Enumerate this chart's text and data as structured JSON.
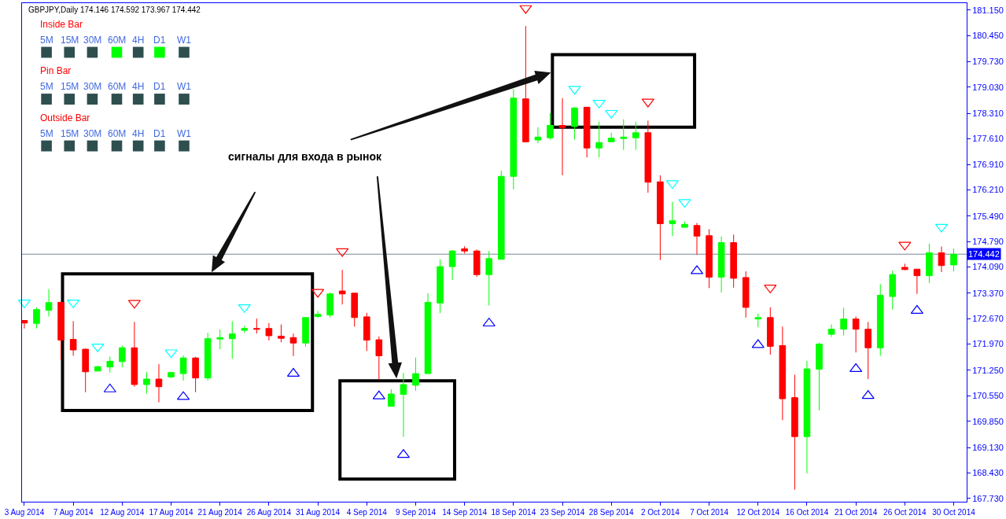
{
  "chart_data": {
    "type": "candlestick",
    "title": "GBPJPY,Daily 174.146 174.592 173.967 174.442",
    "categories": [
      "3 Aug 2014",
      null,
      null,
      null,
      "7 Aug 2014",
      null,
      null,
      null,
      "12 Aug 2014",
      null,
      null,
      null,
      "17 Aug 2014",
      null,
      null,
      null,
      "21 Aug 2014",
      null,
      null,
      null,
      "26 Aug 2014",
      null,
      null,
      null,
      "31 Aug 2014",
      null,
      null,
      null,
      "4 Sep 2014",
      null,
      null,
      null,
      "9 Sep 2014",
      null,
      null,
      null,
      "14 Sep 2014",
      null,
      null,
      null,
      "18 Sep 2014",
      null,
      null,
      null,
      "23 Sep 2014",
      null,
      null,
      null,
      "28 Sep 2014",
      null,
      null,
      null,
      "2 Oct 2014",
      null,
      null,
      null,
      "7 Oct 2014",
      null,
      null,
      null,
      "12 Oct 2014",
      null,
      null,
      null,
      "16 Oct 2014",
      null,
      null,
      null,
      "21 Oct 2014",
      null,
      null,
      null,
      "26 Oct 2014",
      null,
      null,
      null,
      "30 Oct 2014"
    ],
    "ohlc": [
      [
        172.62,
        172.62,
        172.4,
        172.55
      ],
      [
        172.54,
        172.98,
        172.4,
        172.92
      ],
      [
        172.9,
        173.48,
        172.73,
        173.11
      ],
      [
        173.12,
        173.12,
        171.53,
        172.08
      ],
      [
        172.1,
        172.6,
        171.65,
        171.81
      ],
      [
        171.83,
        171.85,
        170.65,
        171.21
      ],
      [
        171.23,
        171.38,
        171.23,
        171.35
      ],
      [
        171.34,
        171.63,
        171.19,
        171.5
      ],
      [
        171.49,
        171.93,
        171.33,
        171.87
      ],
      [
        171.87,
        172.58,
        170.8,
        170.86
      ],
      [
        170.86,
        171.2,
        170.61,
        171.01
      ],
      [
        171.01,
        171.42,
        170.37,
        170.8
      ],
      [
        171.07,
        171.21,
        171.04,
        171.19
      ],
      [
        171.16,
        171.66,
        170.97,
        171.59
      ],
      [
        171.59,
        171.62,
        170.65,
        171.04
      ],
      [
        171.04,
        172.28,
        170.97,
        172.12
      ],
      [
        172.11,
        172.37,
        171.83,
        172.15
      ],
      [
        172.12,
        172.6,
        171.57,
        172.25
      ],
      [
        172.35,
        172.47,
        172.28,
        172.4
      ],
      [
        172.4,
        172.67,
        172.26,
        172.38
      ],
      [
        172.4,
        172.55,
        172.07,
        172.2
      ],
      [
        172.19,
        172.51,
        172.02,
        172.13
      ],
      [
        172.15,
        172.26,
        171.64,
        172.0
      ],
      [
        172.0,
        172.7,
        171.9,
        172.7
      ],
      [
        172.73,
        172.88,
        172.69,
        172.79
      ],
      [
        172.77,
        173.39,
        172.7,
        173.35
      ],
      [
        173.43,
        174.01,
        173.06,
        173.35
      ],
      [
        173.37,
        173.37,
        172.45,
        172.7
      ],
      [
        172.72,
        172.83,
        171.78,
        172.08
      ],
      [
        172.09,
        172.18,
        171.0,
        171.65
      ],
      [
        170.26,
        170.73,
        170.26,
        170.6
      ],
      [
        170.59,
        171.18,
        169.42,
        170.86
      ],
      [
        170.84,
        171.6,
        170.69,
        171.16
      ],
      [
        171.16,
        173.37,
        171.16,
        173.12
      ],
      [
        173.1,
        174.3,
        172.82,
        174.1
      ],
      [
        174.1,
        174.55,
        173.73,
        174.53
      ],
      [
        174.59,
        174.66,
        174.46,
        174.53
      ],
      [
        174.53,
        174.57,
        173.82,
        173.88
      ],
      [
        173.88,
        174.53,
        173.03,
        174.32
      ],
      [
        174.3,
        176.74,
        174.3,
        176.58
      ],
      [
        176.58,
        178.98,
        176.22,
        178.73
      ],
      [
        178.71,
        180.71,
        177.51,
        177.53
      ],
      [
        177.58,
        177.93,
        177.49,
        177.66
      ],
      [
        177.64,
        178.32,
        177.59,
        177.98
      ],
      [
        177.98,
        178.73,
        176.61,
        177.92
      ],
      [
        177.95,
        178.48,
        177.59,
        178.46
      ],
      [
        178.48,
        178.48,
        177.1,
        177.36
      ],
      [
        177.36,
        178.08,
        177.1,
        177.51
      ],
      [
        177.53,
        177.78,
        177.53,
        177.63
      ],
      [
        177.62,
        178.15,
        177.31,
        177.66
      ],
      [
        177.64,
        178.08,
        177.31,
        177.78
      ],
      [
        177.78,
        178.11,
        176.13,
        176.42
      ],
      [
        176.43,
        176.61,
        174.28,
        175.28
      ],
      [
        175.28,
        175.88,
        174.94,
        175.36
      ],
      [
        175.18,
        175.34,
        175.18,
        175.26
      ],
      [
        175.23,
        175.3,
        174.43,
        174.94
      ],
      [
        174.95,
        175.13,
        173.51,
        173.81
      ],
      [
        173.81,
        174.93,
        173.39,
        174.76
      ],
      [
        174.76,
        174.98,
        173.52,
        173.78
      ],
      [
        173.8,
        173.97,
        172.7,
        172.98
      ],
      [
        172.66,
        172.81,
        172.43,
        172.7
      ],
      [
        172.7,
        172.98,
        171.68,
        171.91
      ],
      [
        171.93,
        172.45,
        169.88,
        170.47
      ],
      [
        170.5,
        171.13,
        167.97,
        169.43
      ],
      [
        169.43,
        171.51,
        168.42,
        171.29
      ],
      [
        171.28,
        172.01,
        170.15,
        171.97
      ],
      [
        172.24,
        172.51,
        172.17,
        172.38
      ],
      [
        172.38,
        172.97,
        172.21,
        172.66
      ],
      [
        172.66,
        172.73,
        171.74,
        172.38
      ],
      [
        172.38,
        172.58,
        171.01,
        171.87
      ],
      [
        171.87,
        173.62,
        171.65,
        173.31
      ],
      [
        173.28,
        173.99,
        172.92,
        173.88
      ],
      [
        174.08,
        174.18,
        174.0,
        174.02
      ],
      [
        174.03,
        174.03,
        173.35,
        173.85
      ],
      [
        173.85,
        174.73,
        173.65,
        174.48
      ],
      [
        174.48,
        174.65,
        173.95,
        174.13
      ],
      [
        174.146,
        174.592,
        173.967,
        174.442
      ]
    ],
    "colors": [
      "#ff0000",
      "#00ff00",
      "#00ff00",
      "#ff0000",
      "#ff0000",
      "#ff0000",
      "#00ff00",
      "#00ff00",
      "#00ff00",
      "#ff0000",
      "#00ff00",
      "#ff0000",
      "#00ff00",
      "#00ff00",
      "#ff0000",
      "#00ff00",
      "#00ff00",
      "#00ff00",
      "#00ff00",
      "#ff0000",
      "#ff0000",
      "#ff0000",
      "#ff0000",
      "#00ff00",
      "#00ff00",
      "#00ff00",
      "#ff0000",
      "#ff0000",
      "#ff0000",
      "#ff0000",
      "#00ff00",
      "#00ff00",
      "#00ff00",
      "#00ff00",
      "#00ff00",
      "#00ff00",
      "#ff0000",
      "#ff0000",
      "#00ff00",
      "#00ff00",
      "#00ff00",
      "#ff0000",
      "#00ff00",
      "#00ff00",
      "#ff0000",
      "#00ff00",
      "#ff0000",
      "#00ff00",
      "#00ff00",
      "#00ff00",
      "#00ff00",
      "#ff0000",
      "#ff0000",
      "#00ff00",
      "#00ff00",
      "#ff0000",
      "#ff0000",
      "#00ff00",
      "#ff0000",
      "#ff0000",
      "#00ff00",
      "#ff0000",
      "#ff0000",
      "#ff0000",
      "#00ff00",
      "#00ff00",
      "#00ff00",
      "#00ff00",
      "#ff0000",
      "#ff0000",
      "#00ff00",
      "#00ff00",
      "#ff0000",
      "#ff0000",
      "#00ff00",
      "#ff0000",
      "#00ff00"
    ],
    "series": [
      {
        "type": "scatter",
        "marker": "triangle",
        "color": "#00ffff",
        "values": [
          173.11,
          null,
          null,
          null,
          173.11,
          null,
          171.9,
          null,
          null,
          null,
          null,
          null,
          171.74,
          null,
          null,
          null,
          null,
          null,
          172.98,
          null,
          null,
          null,
          null,
          null,
          null,
          null,
          null,
          null,
          null,
          null,
          null,
          null,
          null,
          null,
          null,
          null,
          null,
          null,
          null,
          null,
          null,
          null,
          null,
          null,
          null,
          178.98,
          null,
          178.6,
          178.32,
          null,
          null,
          null,
          null,
          176.39,
          175.87,
          null,
          null,
          null,
          null,
          null,
          null,
          null,
          null,
          null,
          null,
          null,
          null,
          null,
          null,
          null,
          null,
          null,
          null,
          null,
          null,
          175.19,
          null
        ]
      },
      {
        "type": "scatter",
        "marker": "triangle",
        "color": "#ff0000",
        "values": [
          null,
          null,
          null,
          null,
          null,
          null,
          null,
          null,
          null,
          173.1,
          null,
          null,
          null,
          null,
          null,
          null,
          null,
          null,
          null,
          null,
          null,
          null,
          null,
          null,
          173.4,
          null,
          174.52,
          null,
          null,
          null,
          null,
          null,
          null,
          null,
          null,
          null,
          null,
          null,
          null,
          null,
          null,
          181.2,
          null,
          null,
          null,
          null,
          null,
          null,
          null,
          null,
          null,
          178.63,
          null,
          null,
          null,
          null,
          null,
          null,
          null,
          null,
          null,
          173.52,
          null,
          null,
          null,
          null,
          null,
          null,
          null,
          null,
          null,
          null,
          174.7,
          null,
          null,
          null,
          null
        ]
      },
      {
        "type": "scatter",
        "marker": "triangle",
        "color": "#0000ff",
        "values": [
          null,
          null,
          null,
          null,
          null,
          null,
          null,
          170.73,
          null,
          null,
          null,
          null,
          null,
          170.52,
          null,
          null,
          null,
          null,
          null,
          null,
          null,
          null,
          171.16,
          null,
          null,
          null,
          null,
          null,
          null,
          170.54,
          null,
          168.93,
          null,
          null,
          null,
          null,
          null,
          null,
          172.54,
          null,
          null,
          null,
          null,
          null,
          null,
          null,
          null,
          null,
          null,
          null,
          null,
          null,
          null,
          null,
          null,
          173.98,
          null,
          null,
          null,
          null,
          171.95,
          null,
          null,
          null,
          null,
          null,
          null,
          null,
          171.29,
          170.55,
          null,
          null,
          null,
          172.89,
          null,
          null,
          null
        ]
      }
    ],
    "ylim": [
      167.64,
      181.34
    ],
    "yticks": [
      {
        "value": 181.15,
        "label": "181.150"
      },
      {
        "value": 180.45,
        "label": "180.450"
      },
      {
        "value": 179.73,
        "label": "179.730"
      },
      {
        "value": 179.03,
        "label": "179.030"
      },
      {
        "value": 178.31,
        "label": "178.310"
      },
      {
        "value": 177.61,
        "label": "177.610"
      },
      {
        "value": 176.91,
        "label": "176.910"
      },
      {
        "value": 176.21,
        "label": "176.210"
      },
      {
        "value": 175.49,
        "label": "175.490"
      },
      {
        "value": 174.79,
        "label": "174.790"
      },
      {
        "value": 174.09,
        "label": "174.090"
      },
      {
        "value": 173.37,
        "label": "173.370"
      },
      {
        "value": 172.67,
        "label": "172.670"
      },
      {
        "value": 171.97,
        "label": "171.970"
      },
      {
        "value": 171.25,
        "label": "171.250"
      },
      {
        "value": 170.55,
        "label": "170.550"
      },
      {
        "value": 169.85,
        "label": "169.850"
      },
      {
        "value": 169.13,
        "label": "169.130"
      },
      {
        "value": 168.43,
        "label": "168.430"
      },
      {
        "value": 167.73,
        "label": "167.730"
      }
    ],
    "ref_lines": [
      {
        "axis": "y",
        "value": 174.442,
        "label": "174.442",
        "color": "#778899"
      }
    ],
    "annotations": [
      "Inside Bar",
      "5M",
      "15M",
      "30M",
      "60M",
      "4H",
      "D1",
      "W1",
      "Pin Bar",
      "5M",
      "15M",
      "30M",
      "60M",
      "4H",
      "D1",
      "W1",
      "Outside Bar",
      "5M",
      "15M",
      "30M",
      "60M",
      "4H",
      "D1",
      "W1",
      "сигналы для входа в рынок"
    ]
  }
}
